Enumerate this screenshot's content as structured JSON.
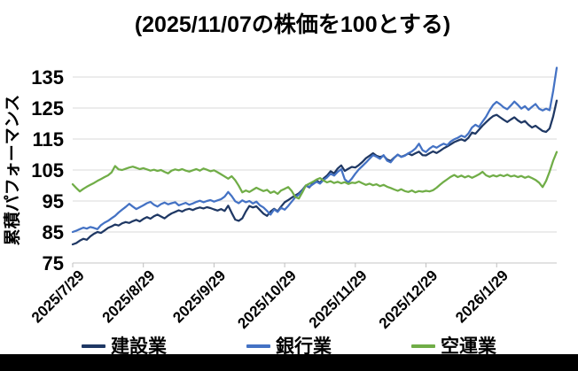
{
  "chart_data": {
    "type": "line",
    "title": "(2025/11/07の株価を100とする)",
    "ylabel": "累積パフォーマンス",
    "ylim": [
      75,
      140
    ],
    "yticks": [
      75,
      85,
      95,
      105,
      115,
      125,
      135
    ],
    "x_tick_labels": [
      "2025/7/29",
      "2025/8/29",
      "2025/9/29",
      "2025/10/29",
      "2025/11/29",
      "2025/12/29",
      "2026/1/29"
    ],
    "x_tick_indices": [
      0,
      20,
      40,
      60,
      80,
      100,
      120
    ],
    "grid": "horizontal",
    "legend_position": "bottom",
    "series": [
      {
        "name": "建設業",
        "color": "#1f3864",
        "values": [
          81.0,
          81.4,
          82.2,
          82.8,
          82.5,
          83.6,
          84.4,
          85.0,
          84.7,
          85.5,
          86.3,
          86.8,
          87.4,
          87.1,
          87.8,
          88.2,
          87.9,
          88.5,
          88.9,
          88.4,
          89.2,
          89.8,
          89.3,
          90.1,
          90.6,
          90.0,
          89.4,
          90.3,
          91.0,
          91.5,
          92.0,
          91.6,
          92.2,
          92.5,
          92.1,
          92.6,
          92.9,
          92.6,
          93.0,
          92.7,
          92.3,
          91.9,
          92.4,
          91.8,
          93.5,
          91.2,
          89.0,
          88.6,
          89.4,
          91.6,
          93.4,
          92.9,
          93.3,
          92.1,
          90.9,
          90.2,
          91.6,
          92.5,
          91.7,
          93.2,
          94.6,
          95.3,
          96.1,
          96.8,
          97.5,
          98.6,
          100.0,
          99.4,
          100.8,
          101.6,
          100.9,
          102.3,
          103.2,
          104.6,
          103.9,
          105.5,
          106.5,
          104.7,
          105.4,
          106.0,
          105.8,
          106.6,
          107.6,
          108.8,
          109.6,
          110.4,
          109.6,
          109.2,
          109.6,
          108.4,
          107.9,
          109.0,
          109.9,
          109.3,
          109.7,
          110.3,
          109.8,
          110.4,
          110.9,
          109.8,
          109.7,
          110.4,
          111.0,
          110.5,
          111.2,
          112.0,
          112.6,
          113.3,
          114.0,
          114.5,
          114.9,
          114.4,
          115.4,
          117.1,
          116.7,
          118.0,
          119.3,
          120.4,
          121.5,
          122.4,
          122.8,
          122.0,
          121.2,
          120.5,
          121.3,
          122.0,
          121.0,
          120.3,
          120.8,
          119.6,
          118.7,
          119.3,
          118.4,
          117.6,
          117.3,
          118.4,
          122.3,
          127.4
        ]
      },
      {
        "name": "銀行業",
        "color": "#4472c4",
        "values": [
          85.0,
          85.4,
          85.9,
          86.4,
          86.1,
          86.6,
          86.3,
          85.9,
          87.2,
          88.0,
          88.6,
          89.4,
          90.2,
          91.3,
          92.2,
          93.1,
          94.1,
          93.2,
          92.4,
          93.0,
          93.6,
          94.3,
          94.7,
          93.8,
          93.2,
          94.0,
          94.5,
          93.9,
          94.3,
          94.6,
          93.6,
          94.0,
          94.4,
          93.8,
          94.2,
          94.7,
          95.1,
          94.6,
          95.0,
          95.3,
          94.8,
          95.2,
          95.6,
          96.4,
          97.9,
          96.6,
          94.9,
          94.3,
          95.2,
          94.6,
          95.0,
          94.2,
          94.8,
          93.6,
          92.9,
          91.8,
          90.6,
          92.3,
          91.5,
          92.8,
          92.2,
          93.4,
          94.8,
          96.2,
          97.1,
          98.3,
          100.0,
          99.6,
          100.4,
          101.2,
          100.6,
          101.8,
          102.6,
          103.8,
          103.2,
          104.4,
          105.3,
          102.0,
          101.0,
          102.2,
          103.8,
          105.2,
          106.3,
          107.4,
          108.6,
          109.8,
          109.3,
          108.6,
          109.8,
          108.0,
          107.5,
          108.9,
          110.0,
          109.2,
          109.6,
          110.4,
          111.0,
          111.9,
          113.5,
          111.4,
          110.8,
          111.9,
          112.7,
          112.2,
          112.9,
          113.5,
          113.0,
          114.2,
          114.9,
          115.4,
          116.1,
          115.6,
          116.8,
          118.7,
          119.6,
          118.9,
          120.6,
          122.2,
          124.3,
          126.0,
          127.0,
          126.2,
          125.2,
          124.6,
          125.8,
          127.1,
          126.0,
          124.8,
          125.6,
          124.4,
          125.4,
          126.3,
          124.8,
          124.2,
          124.8,
          124.3,
          130.5,
          138.0
        ]
      },
      {
        "name": "空運業",
        "color": "#70ad47",
        "values": [
          100.4,
          99.2,
          98.1,
          98.9,
          99.6,
          100.2,
          100.8,
          101.5,
          102.1,
          102.7,
          103.3,
          104.2,
          106.3,
          105.2,
          105.0,
          105.4,
          105.8,
          106.1,
          105.7,
          105.3,
          105.6,
          105.2,
          104.8,
          105.1,
          104.7,
          105.0,
          104.4,
          103.9,
          104.8,
          105.2,
          104.9,
          105.3,
          104.8,
          104.5,
          104.9,
          105.3,
          104.8,
          105.5,
          105.1,
          104.6,
          104.9,
          104.3,
          103.6,
          102.9,
          102.2,
          103.0,
          101.7,
          99.9,
          97.8,
          98.4,
          97.9,
          98.6,
          99.3,
          98.7,
          98.2,
          98.6,
          97.6,
          98.1,
          97.3,
          98.4,
          98.9,
          99.5,
          98.2,
          96.3,
          95.8,
          97.8,
          100.0,
          100.6,
          101.2,
          101.9,
          102.4,
          101.6,
          101.0,
          101.4,
          100.8,
          101.2,
          100.7,
          101.1,
          100.5,
          100.9,
          100.8,
          101.3,
          100.7,
          100.2,
          100.6,
          100.1,
          100.4,
          99.8,
          100.2,
          99.6,
          99.2,
          98.7,
          98.3,
          98.8,
          98.2,
          97.9,
          98.4,
          97.8,
          98.2,
          98.0,
          98.3,
          98.1,
          98.5,
          99.3,
          100.3,
          101.2,
          102.0,
          102.8,
          103.4,
          102.7,
          103.2,
          102.6,
          103.1,
          102.5,
          103.0,
          103.6,
          104.4,
          103.3,
          102.8,
          103.3,
          102.9,
          103.4,
          103.0,
          103.5,
          102.9,
          103.2,
          102.7,
          103.1,
          102.5,
          102.9,
          102.4,
          101.8,
          100.9,
          99.5,
          101.5,
          104.5,
          108.0,
          110.8
        ]
      }
    ]
  },
  "colors": {
    "gridline": "#d9d9d9",
    "axis": "#c6c6c6",
    "tick": "#bfbfbf",
    "text": "#000000",
    "bottom_bar": "#000000"
  }
}
